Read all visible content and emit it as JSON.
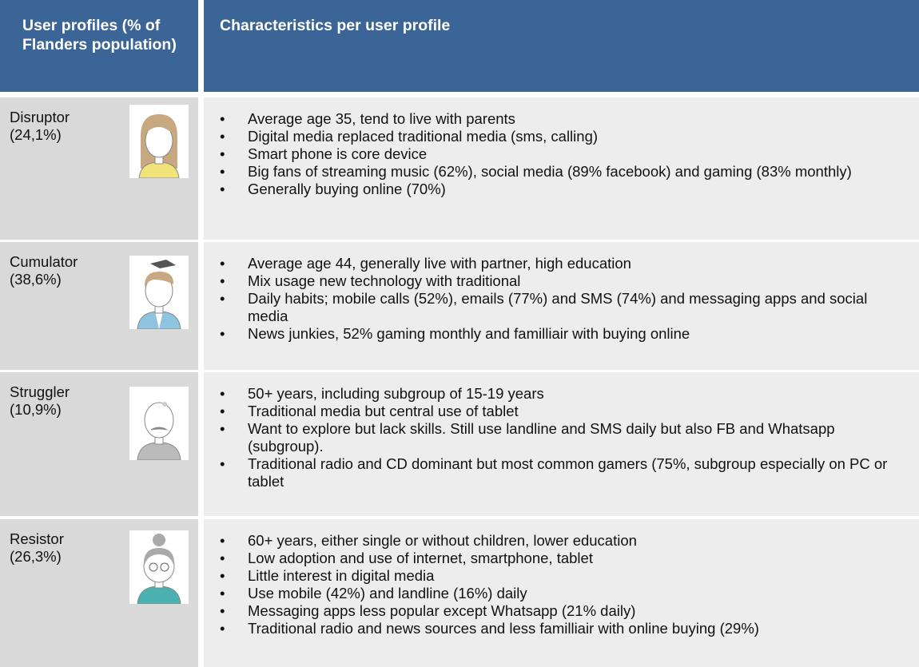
{
  "header": {
    "col1": "User profiles (% of Flanders population)",
    "col2": "Characteristics per user profile"
  },
  "profiles": [
    {
      "name": "Disruptor",
      "share": "(24,1%)",
      "bullets": [
        "Average age 35, tend to live with parents",
        "Digital media replaced traditional media (sms, calling)",
        "Smart phone is core device",
        "Big fans of streaming music (62%), social media (89% facebook) and gaming (83% monthly)",
        "Generally buying online (70%)"
      ]
    },
    {
      "name": "Cumulator",
      "share": "(38,6%)",
      "bullets": [
        "Average age 44, generally live with partner, high education",
        "Mix usage new technology with traditional",
        "Daily habits; mobile calls (52%), emails (77%) and SMS (74%) and messaging apps and social media",
        "News junkies, 52% gaming monthly and familliair with buying online"
      ]
    },
    {
      "name": "Struggler",
      "share": "(10,9%)",
      "bullets": [
        "50+ years, including subgroup of 15-19 years",
        "Traditional media but central use of tablet",
        "Want to explore but lack skills. Still use landline and SMS daily but also FB and Whatsapp (subgroup).",
        "Traditional radio and CD dominant but most common gamers (75%, subgroup especially on PC or tablet"
      ]
    },
    {
      "name": "Resistor",
      "share": "(26,3%)",
      "bullets": [
        "60+ years, either single or without children, lower education",
        "Low adoption and use of internet, smartphone, tablet",
        "Little interest in digital media",
        "Use mobile (42%) and landline (16%) daily",
        "Messaging apps less popular except Whatsapp (21% daily)",
        "Traditional radio and news sources and less familliair with online buying (29%)"
      ]
    }
  ]
}
